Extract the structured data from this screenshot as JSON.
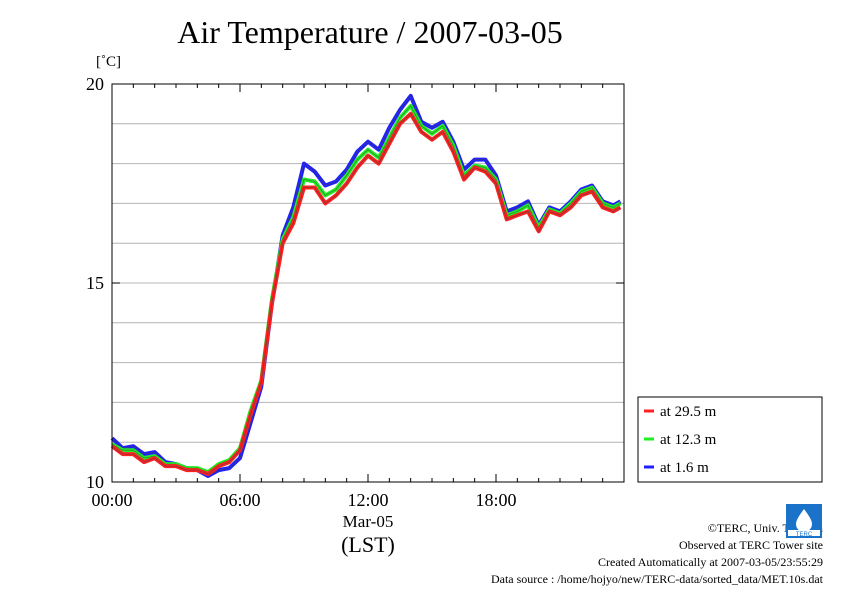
{
  "chart_data": {
    "type": "line",
    "title": "Air Temperature / 2007-03-05",
    "ylabel": "[˚C]",
    "xlabel_lines": [
      "Mar-05",
      "(LST)"
    ],
    "ylim": [
      10,
      20
    ],
    "xlim": [
      0,
      23.8333
    ],
    "y_ticks_major": [
      10,
      15,
      20
    ],
    "y_tick_labels": [
      "10",
      "15",
      "20"
    ],
    "y_grid_step": 1,
    "x_ticks": [
      0,
      6,
      12,
      18
    ],
    "x_tick_labels": [
      "00:00",
      "06:00",
      "12:00",
      "18:00"
    ],
    "grid": true,
    "legend_position": "right",
    "x": [
      0.0,
      0.5,
      1.0,
      1.5,
      2.0,
      2.5,
      3.0,
      3.5,
      4.0,
      4.5,
      5.0,
      5.5,
      6.0,
      6.5,
      7.0,
      7.5,
      8.0,
      8.5,
      9.0,
      9.5,
      10.0,
      10.5,
      11.0,
      11.5,
      12.0,
      12.5,
      13.0,
      13.5,
      14.0,
      14.5,
      15.0,
      15.5,
      16.0,
      16.5,
      17.0,
      17.5,
      18.0,
      18.5,
      19.0,
      19.5,
      20.0,
      20.5,
      21.0,
      21.5,
      22.0,
      22.5,
      23.0,
      23.5,
      23.8333
    ],
    "series": [
      {
        "name": "at 29.5 m",
        "color": "#ff2020",
        "values": [
          10.9,
          10.7,
          10.7,
          10.5,
          10.6,
          10.4,
          10.4,
          10.3,
          10.3,
          10.2,
          10.4,
          10.5,
          10.8,
          11.7,
          12.5,
          14.5,
          16.0,
          16.5,
          17.4,
          17.4,
          17.0,
          17.2,
          17.5,
          17.9,
          18.2,
          18.0,
          18.5,
          19.0,
          19.25,
          18.8,
          18.6,
          18.8,
          18.3,
          17.6,
          17.9,
          17.8,
          17.5,
          16.6,
          16.7,
          16.8,
          16.3,
          16.8,
          16.7,
          16.9,
          17.2,
          17.3,
          16.9,
          16.8,
          16.9
        ]
      },
      {
        "name": "at 12.3 m",
        "color": "#20ee20",
        "values": [
          10.95,
          10.8,
          10.8,
          10.6,
          10.65,
          10.45,
          10.45,
          10.35,
          10.35,
          10.25,
          10.45,
          10.55,
          10.85,
          11.8,
          12.55,
          14.6,
          16.1,
          16.65,
          17.6,
          17.55,
          17.2,
          17.35,
          17.7,
          18.1,
          18.35,
          18.15,
          18.65,
          19.15,
          19.45,
          18.95,
          18.75,
          18.95,
          18.45,
          17.7,
          17.95,
          17.9,
          17.6,
          16.7,
          16.8,
          16.95,
          16.4,
          16.85,
          16.75,
          17.0,
          17.3,
          17.4,
          17.0,
          16.9,
          17.0
        ]
      },
      {
        "name": "at 1.6 m",
        "color": "#2020ff",
        "values": [
          11.1,
          10.85,
          10.9,
          10.7,
          10.75,
          10.5,
          10.45,
          10.35,
          10.3,
          10.15,
          10.3,
          10.35,
          10.6,
          11.5,
          12.4,
          14.5,
          16.2,
          16.9,
          18.0,
          17.8,
          17.45,
          17.55,
          17.85,
          18.3,
          18.55,
          18.35,
          18.9,
          19.35,
          19.7,
          19.05,
          18.9,
          19.05,
          18.55,
          17.85,
          18.1,
          18.1,
          17.7,
          16.8,
          16.9,
          17.05,
          16.45,
          16.9,
          16.8,
          17.05,
          17.35,
          17.45,
          17.05,
          16.95,
          17.05
        ]
      }
    ]
  },
  "credits": {
    "copyright": "©TERC, Univ. Tsukuba",
    "observed": "Observed at TERC Tower site",
    "created": "Created Automatically at 2007-03-05/23:55:29",
    "source": "Data source : /home/hojyo/new/TERC-data/sorted_data/MET.10s.dat"
  },
  "logo": {
    "text": "TERC",
    "color": "#1a73c9"
  }
}
